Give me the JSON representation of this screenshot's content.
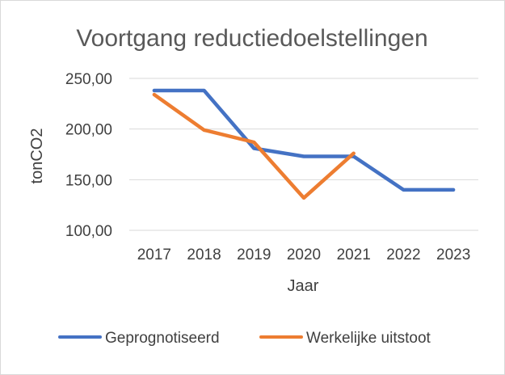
{
  "chart_data": {
    "type": "line",
    "title": "Voortgang reductiedoelstellingen",
    "xlabel": "Jaar",
    "ylabel": "tonCO2",
    "categories": [
      "2017",
      "2018",
      "2019",
      "2020",
      "2021",
      "2022",
      "2023"
    ],
    "y_ticks": [
      "100,00",
      "150,00",
      "200,00",
      "250,00"
    ],
    "ylim": [
      100,
      250
    ],
    "grid": true,
    "legend_position": "bottom",
    "series": [
      {
        "name": "Geprognotiseerd",
        "color": "#4472c4",
        "values": [
          238,
          238,
          181,
          173,
          173,
          140,
          140
        ]
      },
      {
        "name": "Werkelijke uitstoot",
        "color": "#ed7d31",
        "values": [
          234,
          199,
          187,
          132,
          176,
          null,
          null
        ]
      }
    ]
  }
}
